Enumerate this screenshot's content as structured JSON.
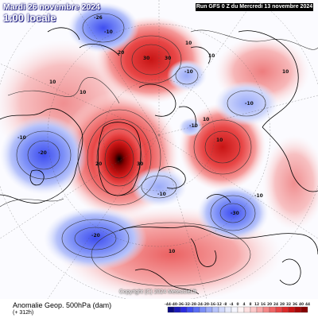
{
  "header": {
    "date": "Mardi 26 novembre 2024",
    "time": "1:00 locale",
    "run": "Run GFS 0 Z du Mercredi 13 novembre 2024"
  },
  "footer": {
    "variable": "Anomalie Geop. 500hPa (dam)",
    "lead": "(+ 312h)",
    "copyright": "Copyright (C) 2024 Meteociel.fr"
  },
  "legend_scale": {
    "labels": [
      "-44",
      "-40",
      "-36",
      "-32",
      "-28",
      "-24",
      "-20",
      "-16",
      "-12",
      "-8",
      "-4",
      "0",
      "4",
      "8",
      "12",
      "16",
      "20",
      "24",
      "28",
      "32",
      "36",
      "40",
      "44"
    ],
    "colors": [
      "#0a0a80",
      "#1a1ab8",
      "#2b2be0",
      "#3f4ef0",
      "#5a6ef5",
      "#7c8ff7",
      "#9aaaf8",
      "#b7c3fa",
      "#d0d8fb",
      "#e6eafc",
      "#f5f6fe",
      "#fef4f4",
      "#fde0e0",
      "#fbc8c8",
      "#f8aaaa",
      "#f48888",
      "#ef6666",
      "#e84646",
      "#dc2a2a",
      "#c81515",
      "#a80808",
      "#850000"
    ]
  },
  "anomaly_labels": [
    "-26",
    "-10",
    "10",
    "30",
    "30",
    "20",
    "-10",
    "10",
    "-20",
    "-10",
    "-10",
    "10",
    "20",
    "30",
    "-10",
    "10",
    "-30",
    "-20",
    "-10",
    "10",
    "-10",
    "10",
    "10",
    "10"
  ],
  "colors": {
    "positive_strong": "#d81818",
    "negative_strong": "#2020c8",
    "neutral": "#ffffff",
    "coastline": "#000000"
  }
}
